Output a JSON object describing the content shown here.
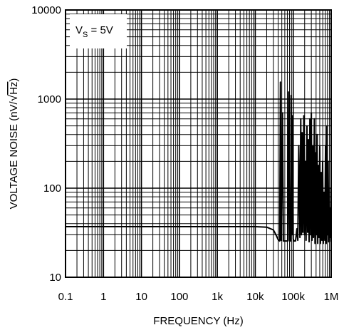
{
  "chart_data": {
    "type": "line",
    "title": "",
    "xlabel": "FREQUENCY (Hz)",
    "ylabel": "VOLTAGE NOISE (nV/√Hz)",
    "ylabel_parts": {
      "main": "VOLTAGE NOISE (nV/",
      "radicand": "Hz",
      "close": ")"
    },
    "x_scale": "log",
    "y_scale": "log",
    "xlim": [
      0.1,
      1000000
    ],
    "ylim": [
      10,
      10000
    ],
    "grid": true,
    "x_ticks": [
      {
        "value": 0.1,
        "label": "0.1"
      },
      {
        "value": 1,
        "label": "1"
      },
      {
        "value": 10,
        "label": "10"
      },
      {
        "value": 100,
        "label": "100"
      },
      {
        "value": 1000,
        "label": "1k"
      },
      {
        "value": 10000,
        "label": "10k"
      },
      {
        "value": 100000,
        "label": "100k"
      },
      {
        "value": 1000000,
        "label": "1M"
      }
    ],
    "y_ticks": [
      {
        "value": 10,
        "label": "10"
      },
      {
        "value": 100,
        "label": "100"
      },
      {
        "value": 1000,
        "label": "1000"
      },
      {
        "value": 10000,
        "label": "10000"
      }
    ],
    "annotation": {
      "main": "V",
      "sub": "S",
      "rest": " = 5V"
    },
    "series": [
      {
        "points": [
          [
            0.1,
            37
          ],
          [
            1,
            37
          ],
          [
            10,
            37
          ],
          [
            100,
            37
          ],
          [
            1000,
            37
          ],
          [
            10000,
            37
          ],
          [
            20000,
            36.5
          ],
          [
            30000,
            34
          ],
          [
            35000,
            30
          ],
          [
            40000,
            26.5
          ],
          [
            44000,
            25.5
          ],
          [
            46000,
            1550
          ],
          [
            48000,
            26
          ],
          [
            52000,
            700
          ],
          [
            55000,
            25.5
          ],
          [
            65000,
            25.5
          ],
          [
            72000,
            25.5
          ],
          [
            76000,
            1200
          ],
          [
            80000,
            26
          ],
          [
            85000,
            25.5
          ],
          [
            88000,
            1100
          ],
          [
            92000,
            30
          ],
          [
            96000,
            650
          ],
          [
            100000,
            27
          ],
          [
            105000,
            25.5
          ],
          [
            115000,
            25.5
          ],
          [
            125000,
            35
          ],
          [
            132000,
            26
          ],
          [
            140000,
            300
          ],
          [
            150000,
            28
          ],
          [
            158000,
            600
          ],
          [
            165000,
            30
          ],
          [
            172000,
            420
          ],
          [
            180000,
            32
          ],
          [
            190000,
            650
          ],
          [
            198000,
            30
          ],
          [
            208000,
            200
          ],
          [
            218000,
            26
          ],
          [
            230000,
            500
          ],
          [
            240000,
            32
          ],
          [
            252000,
            350
          ],
          [
            262000,
            25
          ],
          [
            275000,
            600
          ],
          [
            288000,
            30
          ],
          [
            300000,
            700
          ],
          [
            312000,
            26
          ],
          [
            328000,
            300
          ],
          [
            342000,
            28
          ],
          [
            360000,
            600
          ],
          [
            375000,
            24
          ],
          [
            392000,
            250
          ],
          [
            408000,
            30
          ],
          [
            425000,
            400
          ],
          [
            442000,
            24
          ],
          [
            460000,
            180
          ],
          [
            480000,
            28
          ],
          [
            500000,
            300
          ],
          [
            522000,
            24
          ],
          [
            545000,
            150
          ],
          [
            570000,
            26
          ],
          [
            595000,
            200
          ],
          [
            620000,
            24
          ],
          [
            650000,
            90
          ],
          [
            680000,
            26
          ],
          [
            710000,
            300
          ],
          [
            740000,
            24
          ],
          [
            770000,
            500
          ],
          [
            800000,
            30
          ],
          [
            830000,
            200
          ],
          [
            860000,
            25
          ],
          [
            890000,
            100
          ],
          [
            920000,
            28
          ],
          [
            950000,
            60
          ],
          [
            980000,
            25
          ]
        ]
      }
    ]
  }
}
